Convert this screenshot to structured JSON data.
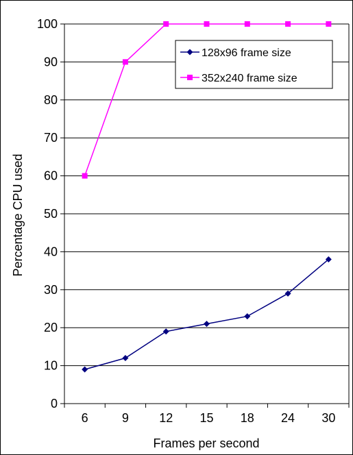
{
  "chart_data": {
    "type": "line",
    "categories": [
      "6",
      "9",
      "12",
      "15",
      "18",
      "24",
      "30"
    ],
    "series": [
      {
        "name": "128x96 frame size",
        "values": [
          9,
          12,
          19,
          21,
          23,
          29,
          38
        ],
        "color": "#000080",
        "marker": "diamond"
      },
      {
        "name": "352x240 frame size",
        "values": [
          60,
          90,
          100,
          100,
          100,
          100,
          100
        ],
        "color": "#ff00ff",
        "marker": "square"
      }
    ],
    "xlabel": "Frames per second",
    "ylabel": "Percentage CPU used",
    "ylim": [
      0,
      100
    ],
    "yticks": [
      0,
      10,
      20,
      30,
      40,
      50,
      60,
      70,
      80,
      90,
      100
    ],
    "grid": "horizontal",
    "legend_position": "top-right"
  }
}
